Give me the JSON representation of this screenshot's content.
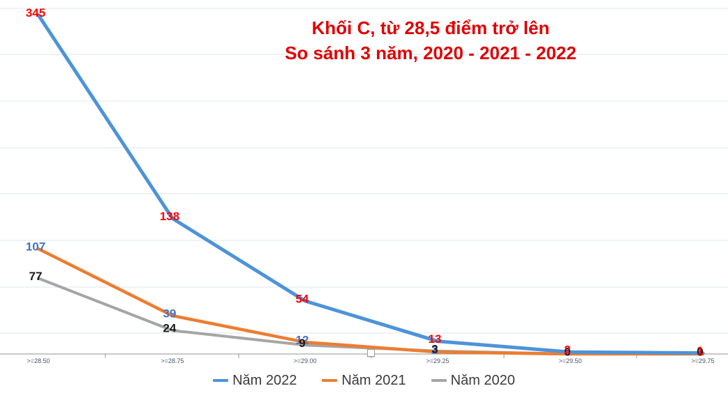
{
  "chart_data": {
    "type": "line",
    "title_line1": "Khối C, từ 28,5 điểm trở lên",
    "title_line2": "So sánh 3 năm, 2020 - 2021 - 2022",
    "title_color": "#E00000",
    "categories": [
      ">=28.50",
      ">=28.75",
      ">=29.00",
      ">=29.25",
      ">=29.50",
      ">=29.75"
    ],
    "series": [
      {
        "name": "Năm 2022",
        "color": "#4D93D9",
        "label_color": "#FF0000",
        "values": [
          345,
          138,
          54,
          13,
          2,
          1
        ]
      },
      {
        "name": "Năm 2021",
        "color": "#ED7D31",
        "label_color": "#4472C4",
        "values": [
          107,
          39,
          12,
          2,
          0,
          0
        ]
      },
      {
        "name": "Năm 2020",
        "color": "#A5A5A5",
        "label_color": "#1A1A1A",
        "values": [
          77,
          24,
          9,
          3,
          0,
          0
        ]
      }
    ],
    "ylim": [
      0,
      350
    ],
    "xlabel": "",
    "ylabel": "",
    "grid": true,
    "legend_position": "bottom",
    "gridline_color": "#DEE6F0",
    "axis_color": "#A6A6A6"
  }
}
